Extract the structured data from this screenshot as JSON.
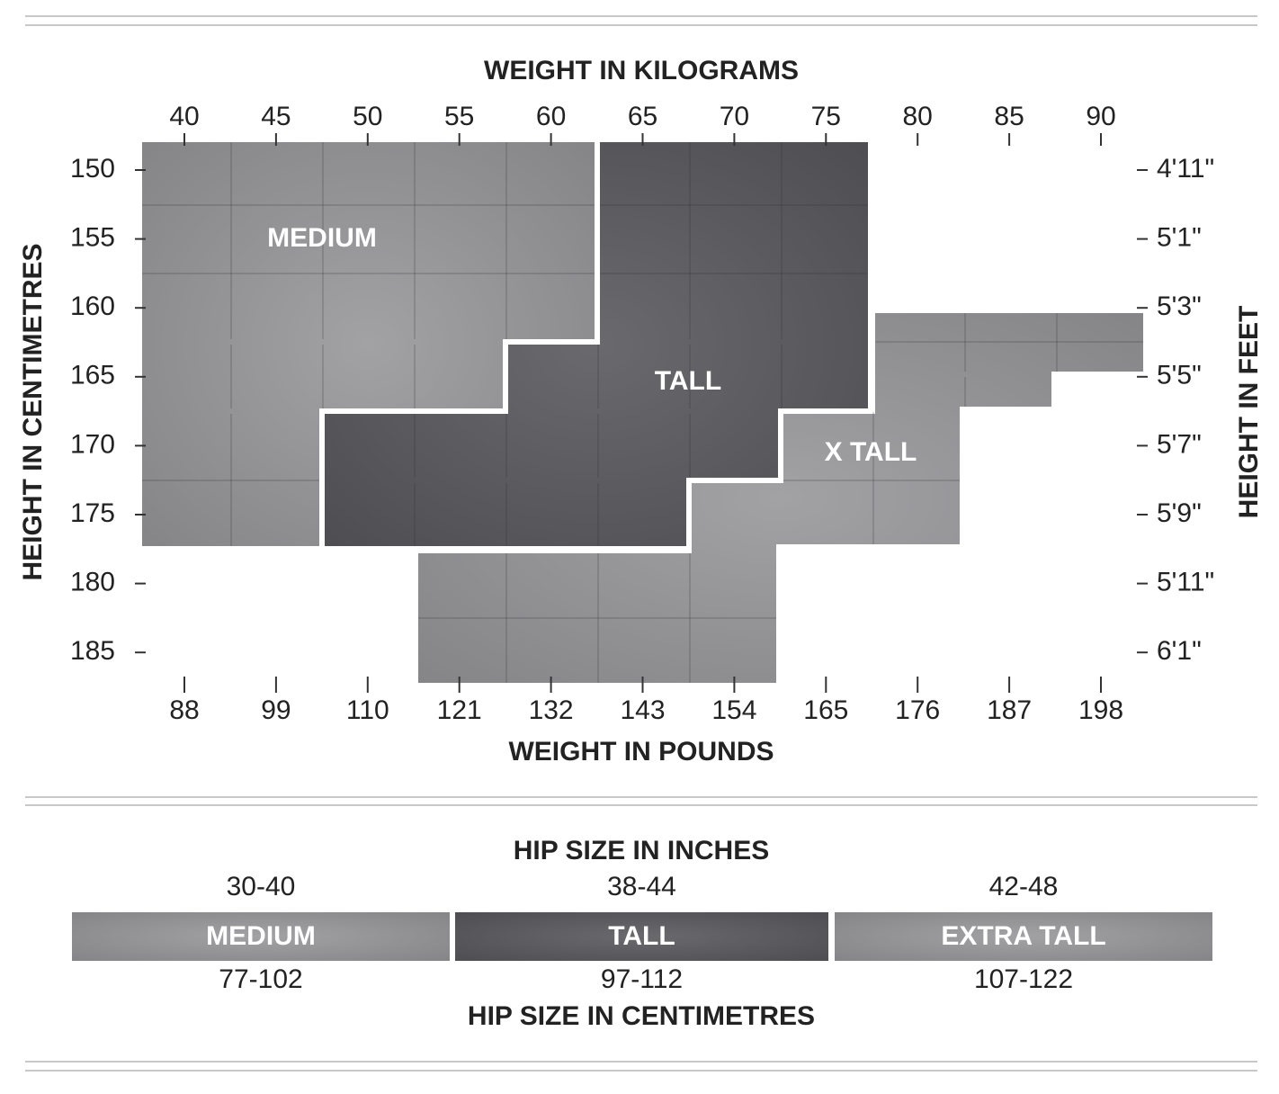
{
  "chart": {
    "top_title": "WEIGHT IN KILOGRAMS",
    "bottom_title": "WEIGHT IN POUNDS",
    "left_title": "HEIGHT IN CENTIMETRES",
    "right_title": "HEIGHT IN FEET",
    "kg": [
      "40",
      "45",
      "50",
      "55",
      "60",
      "65",
      "70",
      "75",
      "80",
      "85",
      "90"
    ],
    "lbs": [
      "88",
      "99",
      "110",
      "121",
      "132",
      "143",
      "154",
      "165",
      "176",
      "187",
      "198"
    ],
    "cm": [
      "150",
      "155",
      "160",
      "165",
      "170",
      "175",
      "180",
      "185"
    ],
    "ft": [
      "4'11\"",
      "5'1\"",
      "5'3\"",
      "5'5\"",
      "5'7\"",
      "5'9\"",
      "5'11\"",
      "6'1\""
    ],
    "regions": [
      "MEDIUM",
      "TALL",
      "X TALL"
    ]
  },
  "hip": {
    "title": "HIP SIZE IN INCHES",
    "cm_title": "HIP SIZE IN CENTIMETRES",
    "columns": [
      {
        "inches": "30-40",
        "name": "MEDIUM",
        "cm": "77-102"
      },
      {
        "inches": "38-44",
        "name": "TALL",
        "cm": "97-112"
      },
      {
        "inches": "42-48",
        "name": "EXTRA TALL",
        "cm": "107-122"
      }
    ]
  }
}
